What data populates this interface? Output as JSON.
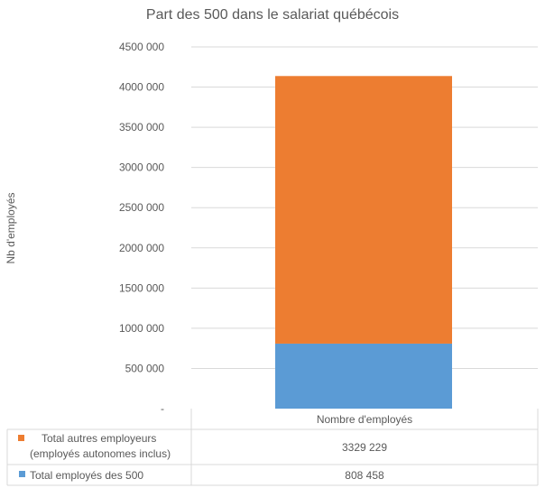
{
  "chart_data": {
    "type": "bar",
    "stacked": true,
    "title": "Part des 500 dans le salariat québécois",
    "ylabel": "Nb d'employés",
    "xlabel": "",
    "categories": [
      "Nombre d'employés"
    ],
    "ylim": [
      0,
      4500000
    ],
    "y_ticks": [
      0,
      500000,
      1000000,
      1500000,
      2000000,
      2500000,
      3000000,
      3500000,
      4000000,
      4500000
    ],
    "y_tick_labels": [
      "-",
      "500 000",
      "1000 000",
      "1500 000",
      "2000 000",
      "2500 000",
      "3000 000",
      "3500 000",
      "4000 000",
      "4500 000"
    ],
    "grid": true,
    "legend": "data-table",
    "series": [
      {
        "name": "Total employés des 500",
        "values": [
          808458
        ],
        "value_labels": [
          "808 458"
        ],
        "color": "#5B9BD5"
      },
      {
        "name": "Total autres employeurs (employés autonomes inclus)",
        "name_lines": [
          "Total autres employeurs",
          "(employés autonomes inclus)"
        ],
        "values": [
          3329229
        ],
        "value_labels": [
          "3329 229"
        ],
        "color": "#ED7D31"
      }
    ]
  }
}
